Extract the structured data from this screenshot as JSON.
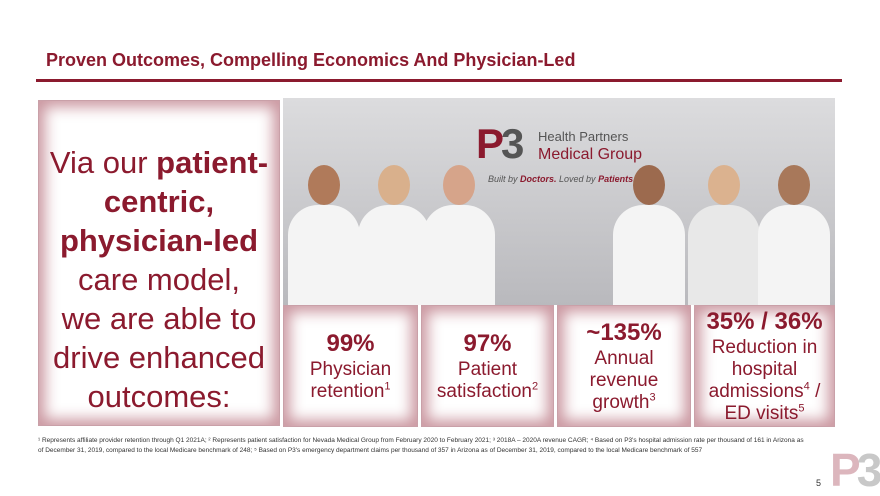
{
  "title": "Proven Outcomes, Compelling Economics And Physician-Led",
  "left": {
    "l1": "Via our ",
    "l1b": "patient-",
    "l2b": "centric,",
    "l3b": "physician-led",
    "l4": "care model,",
    "l5": "we are able to",
    "l6": "drive enhanced",
    "l7": "outcomes:"
  },
  "logo": {
    "mark_p": "P",
    "mark_3": "3",
    "line1": "Health Partners",
    "line2": "Medical Group",
    "tag1": "Built by ",
    "tag2": "Doctors.",
    "tag3": " Loved by ",
    "tag4": "Patients."
  },
  "stats": [
    {
      "value": "99%",
      "label1": "Physician",
      "label2": "retention",
      "sup": "1"
    },
    {
      "value": "97%",
      "label1": "Patient",
      "label2": "satisfaction",
      "sup": "2"
    },
    {
      "value": "~135%",
      "label1": "Annual",
      "label2": "revenue",
      "label3": "growth",
      "sup": "3"
    },
    {
      "value": "35% / 36%",
      "label1": "Reduction in",
      "label2": "hospital",
      "label3": "admissions",
      "sup": "4",
      "label4": " /",
      "label5": "ED visits",
      "sup2": "5"
    }
  ],
  "footnote": "¹ Represents affiliate provider retention through Q1 2021A; ² Represents patient satisfaction for Nevada Medical Group from February 2020 to February 2021; ³ 2018A – 2020A revenue CAGR; ⁴ Based on P3's hospital admission rate per thousand of 161 in Arizona as of December 31, 2019, compared to the local Medicare benchmark of 248; ⁵ Based on P3's emergency department claims per thousand of 357 in Arizona as of December 31, 2019, compared to the local Medicare benchmark of 557",
  "page_number": "5",
  "colors": {
    "accent": "#8b1a2e"
  }
}
